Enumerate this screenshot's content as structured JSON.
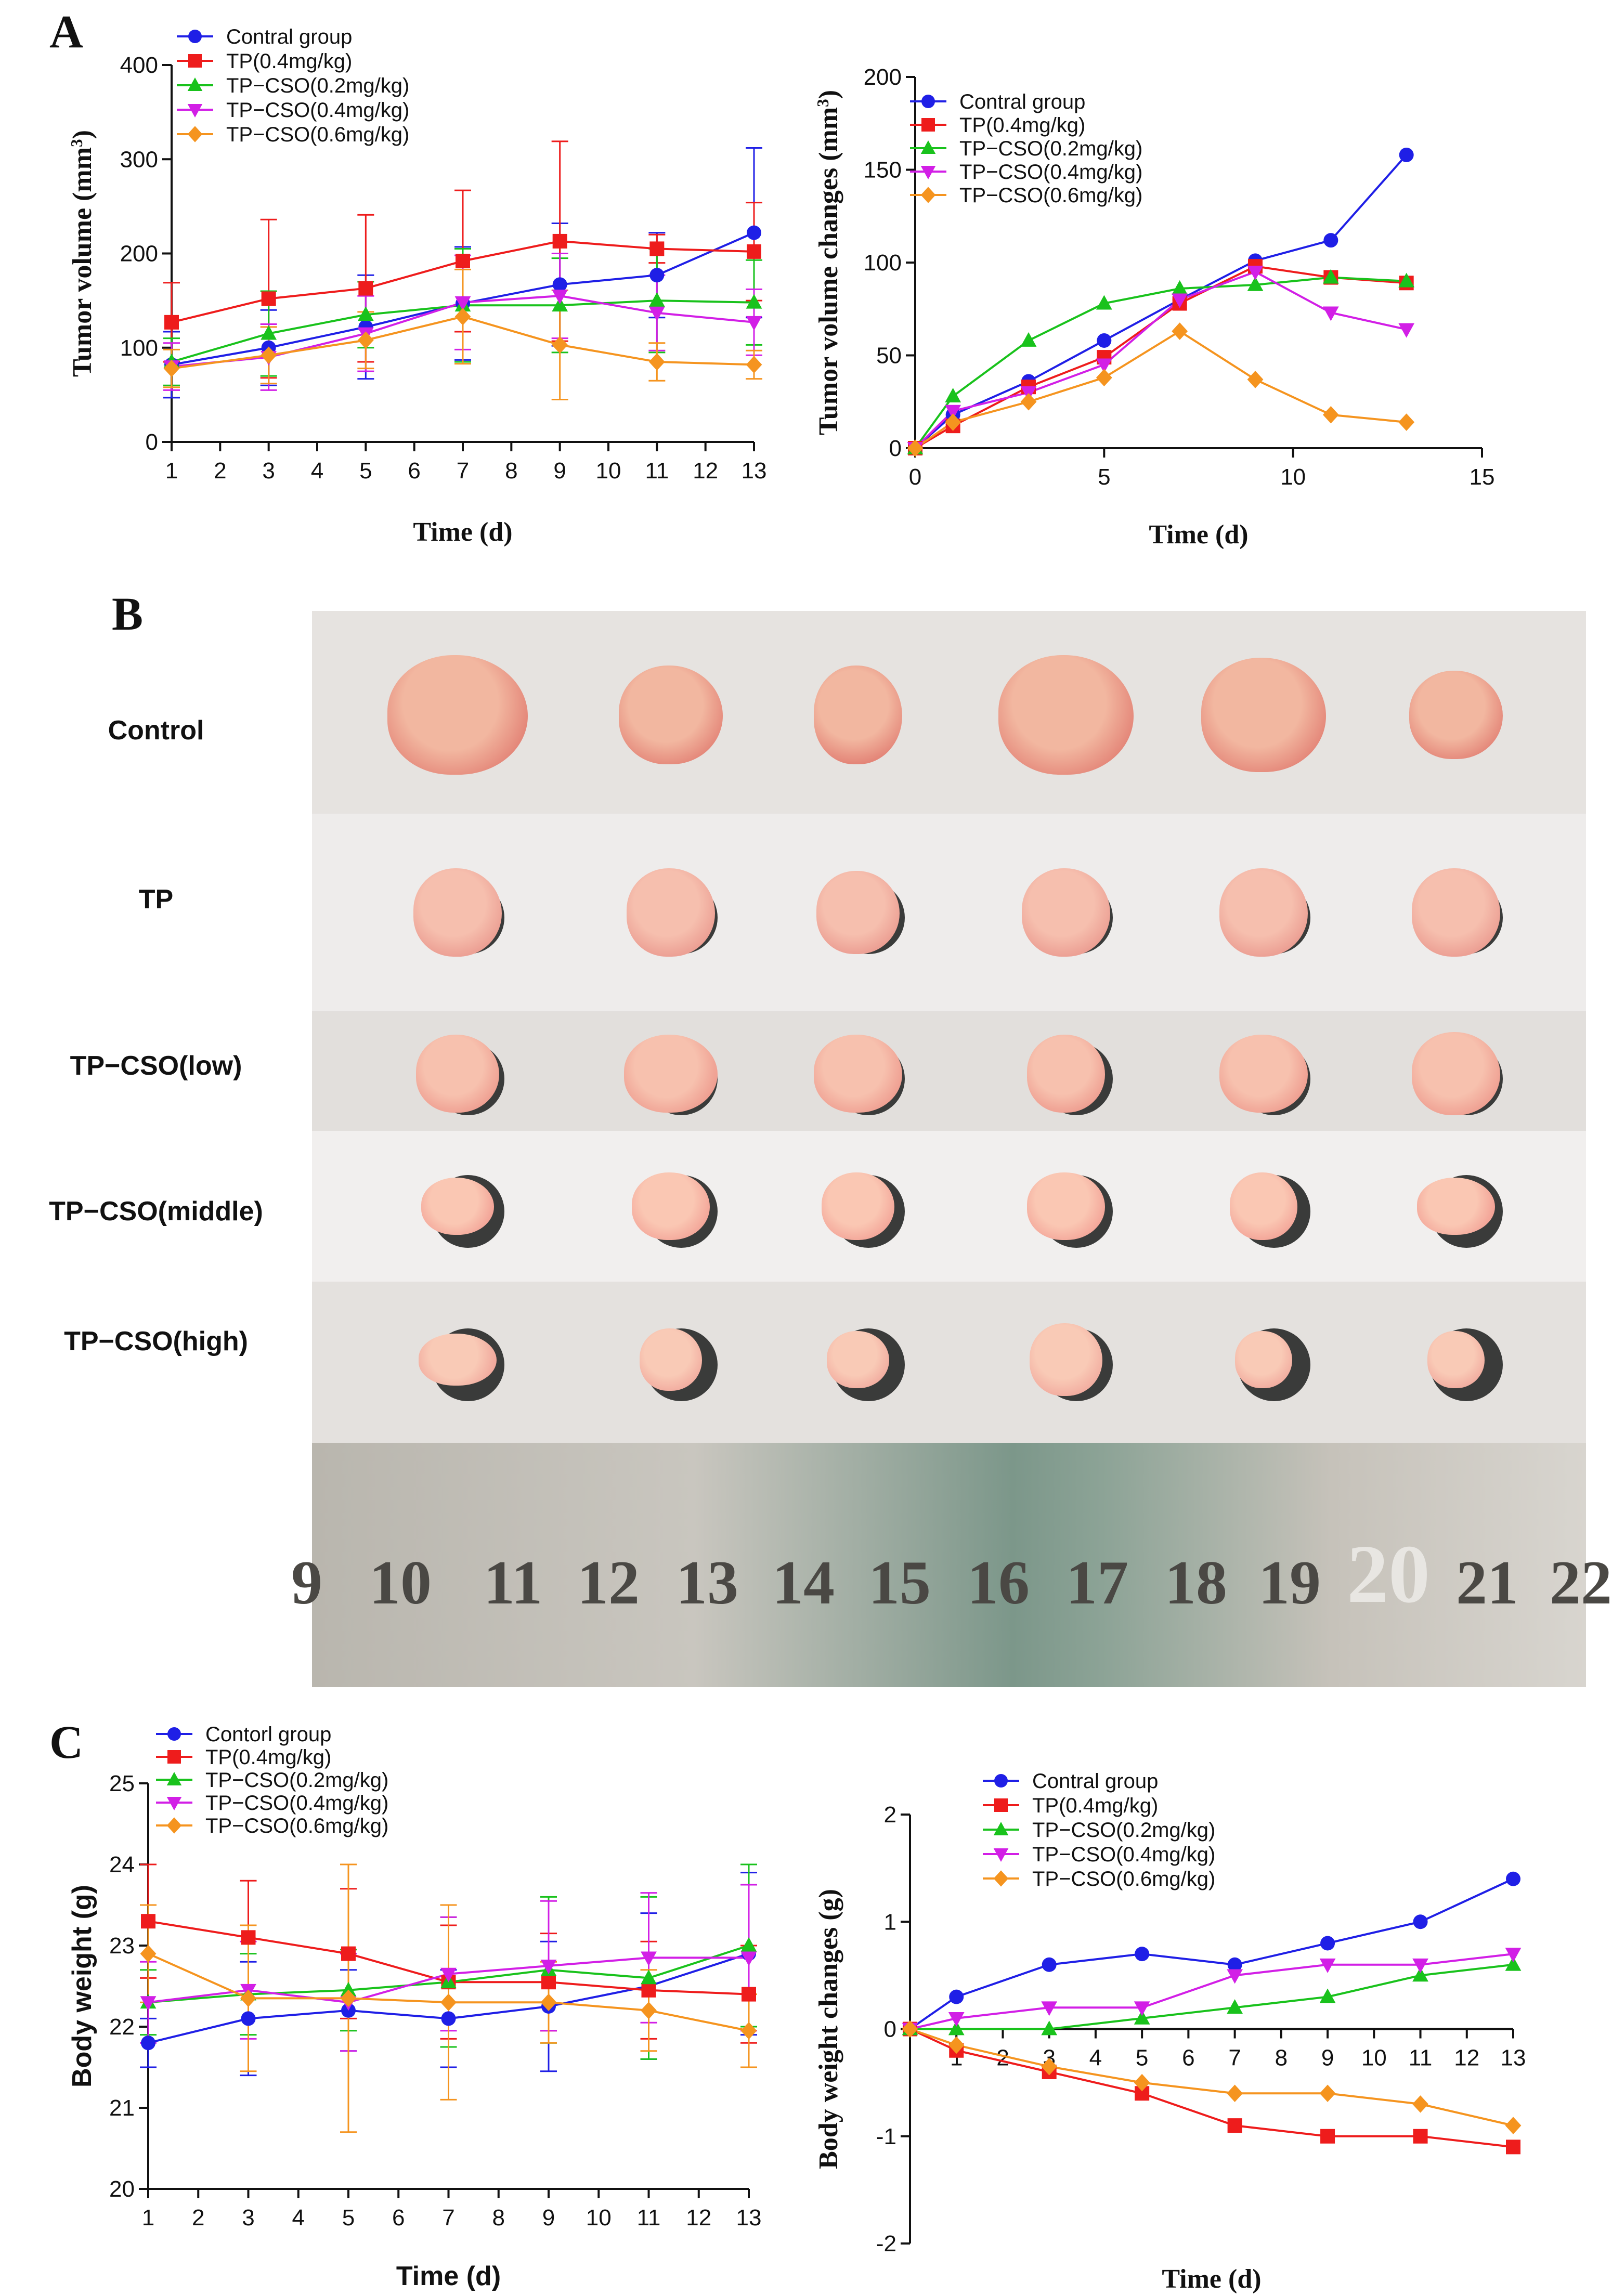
{
  "panels": {
    "a": "A",
    "b": "B",
    "c": "C"
  },
  "photo": {
    "rows": [
      "Control",
      "TP",
      "TP−CSO(low)",
      "TP−CSO(middle)",
      "TP−CSO(high)"
    ],
    "ruler": [
      "9",
      "10",
      "11",
      "12",
      "13",
      "14",
      "15",
      "16",
      "17",
      "18",
      "19",
      "20",
      "21",
      "22"
    ]
  },
  "colors": {
    "blue": "#1f1fe6",
    "red": "#ee1c1c",
    "green": "#19c21c",
    "magenta": "#d21fe6",
    "orange": "#f5941f"
  },
  "chart_data": [
    {
      "type": "line",
      "id": "A1",
      "title": "",
      "xlabel": "Time (d)",
      "ylabel": "Tumor volume (mm3)",
      "xlim": [
        1,
        13
      ],
      "ylim": [
        0,
        400
      ],
      "xticks": [
        "1",
        "2",
        "3",
        "4",
        "5",
        "6",
        "7",
        "8",
        "9",
        "10",
        "11",
        "12",
        "13"
      ],
      "yticks": [
        "0",
        "100",
        "200",
        "300",
        "400"
      ],
      "x": [
        1,
        3,
        5,
        7,
        9,
        11,
        13
      ],
      "legend_position": "top-left",
      "series": [
        {
          "name": "Contral group",
          "color": "#1f1fe6",
          "marker": "circle",
          "values": [
            82,
            100,
            122,
            147,
            167,
            177,
            222
          ],
          "errors": [
            35,
            40,
            55,
            60,
            65,
            45,
            90
          ]
        },
        {
          "name": "TP(0.4mg/kg)",
          "color": "#ee1c1c",
          "marker": "square",
          "values": [
            127,
            152,
            163,
            192,
            213,
            205,
            202
          ],
          "errors": [
            42,
            84,
            78,
            75,
            106,
            15,
            52
          ]
        },
        {
          "name": "TP−CSO(0.2mg/kg)",
          "color": "#19c21c",
          "marker": "triangle-up",
          "values": [
            85,
            115,
            135,
            145,
            145,
            150,
            148
          ],
          "errors": [
            25,
            45,
            35,
            60,
            50,
            55,
            45
          ]
        },
        {
          "name": "TP−CSO(0.4mg/kg)",
          "color": "#d21fe6",
          "marker": "triangle-down",
          "values": [
            80,
            90,
            115,
            148,
            155,
            137,
            127
          ],
          "errors": [
            25,
            35,
            40,
            50,
            45,
            40,
            35
          ]
        },
        {
          "name": "TP−CSO(0.6mg/kg)",
          "color": "#f5941f",
          "marker": "diamond",
          "values": [
            78,
            92,
            108,
            133,
            103,
            85,
            82
          ],
          "errors": [
            20,
            30,
            30,
            50,
            58,
            20,
            15
          ]
        }
      ]
    },
    {
      "type": "line",
      "id": "A2",
      "title": "",
      "xlabel": "Time (d)",
      "ylabel": "Tumor volume changes (mm3)",
      "xlim": [
        0,
        15
      ],
      "ylim": [
        0,
        200
      ],
      "xticks": [
        "0",
        "5",
        "10",
        "15"
      ],
      "yticks": [
        "0",
        "50",
        "100",
        "150",
        "200"
      ],
      "x": [
        0,
        1,
        3,
        5,
        7,
        9,
        11,
        13
      ],
      "legend_position": "top-left",
      "series": [
        {
          "name": "Contral group",
          "color": "#1f1fe6",
          "marker": "circle",
          "values": [
            0,
            18,
            36,
            58,
            80,
            101,
            112,
            158
          ]
        },
        {
          "name": "TP(0.4mg/kg)",
          "color": "#ee1c1c",
          "marker": "square",
          "values": [
            0,
            12,
            33,
            49,
            78,
            98,
            92,
            89
          ]
        },
        {
          "name": "TP−CSO(0.2mg/kg)",
          "color": "#19c21c",
          "marker": "triangle-up",
          "values": [
            0,
            28,
            58,
            78,
            86,
            88,
            92,
            90
          ]
        },
        {
          "name": "TP−CSO(0.4mg/kg)",
          "color": "#d21fe6",
          "marker": "triangle-down",
          "values": [
            0,
            20,
            30,
            45,
            80,
            95,
            73,
            64
          ]
        },
        {
          "name": "TP−CSO(0.6mg/kg)",
          "color": "#f5941f",
          "marker": "diamond",
          "values": [
            0,
            14,
            25,
            38,
            63,
            37,
            18,
            14
          ]
        }
      ]
    },
    {
      "type": "line",
      "id": "C1",
      "title": "",
      "xlabel": "Time (d)",
      "ylabel": "Body weight (g)",
      "xlim": [
        1,
        13
      ],
      "ylim": [
        20,
        25
      ],
      "xticks": [
        "1",
        "2",
        "3",
        "4",
        "5",
        "6",
        "7",
        "8",
        "9",
        "10",
        "11",
        "12",
        "13"
      ],
      "yticks": [
        "20",
        "21",
        "22",
        "23",
        "24",
        "25"
      ],
      "x": [
        1,
        3,
        5,
        7,
        9,
        11,
        13
      ],
      "legend_position": "top-left",
      "series": [
        {
          "name": "Contorl group",
          "color": "#1f1fe6",
          "marker": "circle",
          "values": [
            21.8,
            22.1,
            22.2,
            22.1,
            22.25,
            22.5,
            22.9
          ],
          "errors": [
            0.3,
            0.7,
            0.5,
            0.6,
            0.8,
            0.9,
            1.0
          ]
        },
        {
          "name": "TP(0.4mg/kg)",
          "color": "#ee1c1c",
          "marker": "square",
          "values": [
            23.3,
            23.1,
            22.9,
            22.55,
            22.55,
            22.45,
            22.4
          ],
          "errors": [
            0.7,
            0.7,
            0.8,
            0.7,
            0.6,
            0.6,
            0.6
          ]
        },
        {
          "name": "TP−CSO(0.2mg/kg)",
          "color": "#19c21c",
          "marker": "triangle-up",
          "values": [
            22.3,
            22.4,
            22.45,
            22.55,
            22.7,
            22.6,
            23.0
          ],
          "errors": [
            0.4,
            0.5,
            0.5,
            0.8,
            0.9,
            1.0,
            1.0
          ]
        },
        {
          "name": "TP−CSO(0.4mg/kg)",
          "color": "#d21fe6",
          "marker": "triangle-down",
          "values": [
            22.3,
            22.45,
            22.3,
            22.65,
            22.75,
            22.85,
            22.85
          ],
          "errors": [
            0.5,
            0.6,
            0.6,
            0.7,
            0.8,
            0.8,
            0.9
          ]
        },
        {
          "name": "TP−CSO(0.6mg/kg)",
          "color": "#f5941f",
          "marker": "diamond",
          "values": [
            22.9,
            22.35,
            22.35,
            22.3,
            22.3,
            22.2,
            21.95
          ],
          "errors": [
            0.6,
            0.9,
            1.65,
            1.2,
            0.5,
            0.5,
            0.45
          ]
        }
      ]
    },
    {
      "type": "line",
      "id": "C2",
      "title": "",
      "xlabel": "Time (d)",
      "ylabel": "Body weight changes (g)",
      "xlim": [
        0,
        13
      ],
      "ylim": [
        -2,
        2
      ],
      "xticks": [
        "1",
        "2",
        "3",
        "4",
        "5",
        "6",
        "7",
        "8",
        "9",
        "10",
        "11",
        "12",
        "13"
      ],
      "yticks": [
        "-2",
        "-1",
        "0",
        "1",
        "2"
      ],
      "x": [
        0,
        1,
        3,
        5,
        7,
        9,
        11,
        13
      ],
      "legend_position": "top-left",
      "series": [
        {
          "name": "Contral group",
          "color": "#1f1fe6",
          "marker": "circle",
          "values": [
            0,
            0.3,
            0.6,
            0.7,
            0.6,
            0.8,
            1.0,
            1.4
          ]
        },
        {
          "name": "TP(0.4mg/kg)",
          "color": "#ee1c1c",
          "marker": "square",
          "values": [
            0,
            -0.2,
            -0.4,
            -0.6,
            -0.9,
            -1.0,
            -1.0,
            -1.1
          ]
        },
        {
          "name": "TP−CSO(0.2mg/kg)",
          "color": "#19c21c",
          "marker": "triangle-up",
          "values": [
            0,
            0,
            0,
            0.1,
            0.2,
            0.3,
            0.5,
            0.6
          ]
        },
        {
          "name": "TP−CSO(0.4mg/kg)",
          "color": "#d21fe6",
          "marker": "triangle-down",
          "values": [
            0,
            0.1,
            0.2,
            0.2,
            0.5,
            0.6,
            0.6,
            0.7
          ]
        },
        {
          "name": "TP−CSO(0.6mg/kg)",
          "color": "#f5941f",
          "marker": "diamond",
          "values": [
            0,
            -0.15,
            -0.35,
            -0.5,
            -0.6,
            -0.6,
            -0.7,
            -0.9
          ]
        }
      ]
    }
  ]
}
